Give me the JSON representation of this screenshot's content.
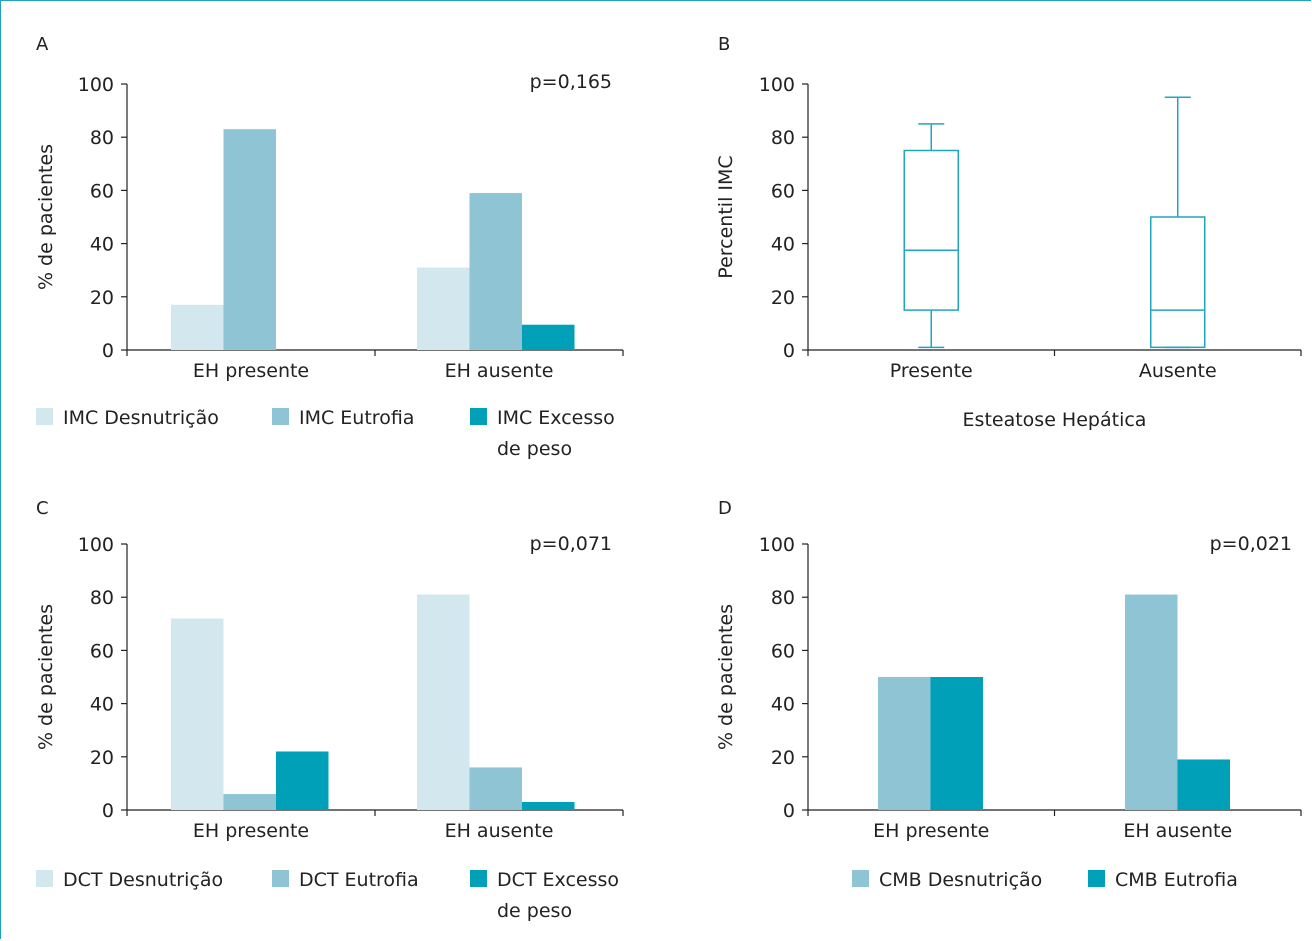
{
  "colors": {
    "desnutricao": "#d2e8ee",
    "eutrofia": "#8ec4d4",
    "excesso": "#00a0b8",
    "box": "#21a6c1",
    "frame": "#1fa3ba",
    "axis": "#222222"
  },
  "chart_data": [
    {
      "panel": "A",
      "type": "bar",
      "categories": [
        "EH presente",
        "EH ausente"
      ],
      "series": [
        {
          "name": "IMC Desnutrição",
          "values": [
            17,
            31
          ]
        },
        {
          "name": "IMC Eutrofia",
          "values": [
            83,
            59
          ]
        },
        {
          "name": "IMC Excesso de peso",
          "values": [
            0,
            9.5
          ]
        }
      ],
      "annotation": "p=0,165",
      "ylabel": "% de pacientes",
      "xlabel": "",
      "ylim": [
        0,
        100
      ],
      "yticks": [
        0,
        20,
        40,
        60,
        80,
        100
      ],
      "legend": {
        "position": "bottom",
        "lines": [
          [
            "IMC Desnutrição"
          ],
          [
            "IMC Eutrofia"
          ],
          [
            "IMC Excesso",
            "de peso"
          ]
        ]
      }
    },
    {
      "panel": "B",
      "type": "box",
      "categories": [
        "Presente",
        "Ausente"
      ],
      "boxes": [
        {
          "whisker_low": 1,
          "q1": 15,
          "median": 37.5,
          "q3": 75,
          "whisker_high": 85
        },
        {
          "whisker_low": 1,
          "q1": 1,
          "median": 15,
          "q3": 50,
          "whisker_high": 95
        }
      ],
      "ylabel": "Percentil IMC",
      "xlabel": "Esteatose Hepática",
      "ylim": [
        0,
        100
      ],
      "yticks": [
        0,
        20,
        40,
        60,
        80,
        100
      ]
    },
    {
      "panel": "C",
      "type": "bar",
      "categories": [
        "EH presente",
        "EH ausente"
      ],
      "series": [
        {
          "name": "DCT Desnutrição",
          "values": [
            72,
            81
          ]
        },
        {
          "name": "DCT Eutrofia",
          "values": [
            6,
            16
          ]
        },
        {
          "name": "DCT Excesso de peso",
          "values": [
            22,
            3
          ]
        }
      ],
      "annotation": "p=0,071",
      "ylabel": "% de pacientes",
      "xlabel": "",
      "ylim": [
        0,
        100
      ],
      "yticks": [
        0,
        20,
        40,
        60,
        80,
        100
      ],
      "legend": {
        "position": "bottom",
        "lines": [
          [
            "DCT Desnutrição"
          ],
          [
            "DCT Eutrofia"
          ],
          [
            "DCT Excesso",
            "de peso"
          ]
        ]
      }
    },
    {
      "panel": "D",
      "type": "bar",
      "categories": [
        "EH presente",
        "EH ausente"
      ],
      "series": [
        {
          "name": "CMB Desnutrição",
          "values": [
            50,
            81
          ]
        },
        {
          "name": "CMB Eutrofia",
          "values": [
            50,
            19
          ]
        }
      ],
      "annotation": "p=0,021",
      "ylabel": "% de pacientes",
      "xlabel": "",
      "ylim": [
        0,
        100
      ],
      "yticks": [
        0,
        20,
        40,
        60,
        80,
        100
      ],
      "legend": {
        "position": "bottom",
        "lines": [
          [
            "CMB Desnutrição"
          ],
          [
            "CMB Eutrofia"
          ]
        ]
      }
    }
  ]
}
